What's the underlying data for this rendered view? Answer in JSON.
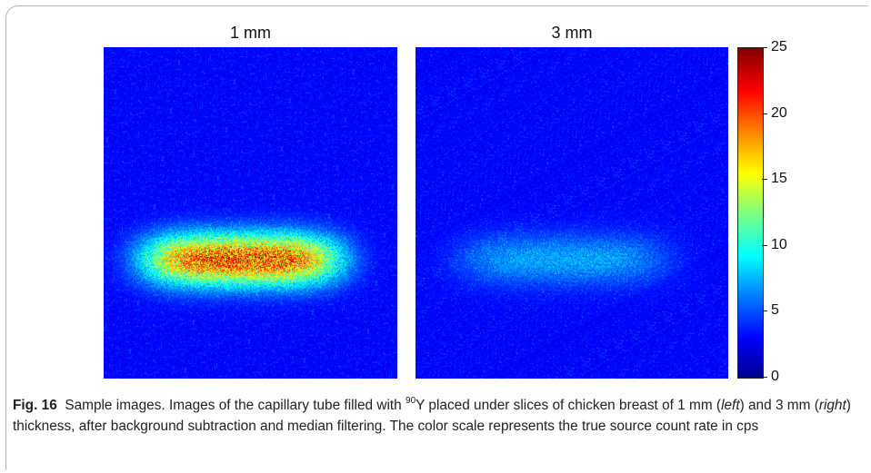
{
  "figure": {
    "panels": [
      {
        "title": "1 mm",
        "signal_peak": 0.9
      },
      {
        "title": "3 mm",
        "signal_peak": 0.22
      }
    ],
    "colorbar": {
      "min": 0,
      "max": 25,
      "ticks": [
        "0",
        "5",
        "10",
        "15",
        "20",
        "25"
      ],
      "colormap": "jet"
    }
  },
  "caption": {
    "label": "Fig. 16",
    "sentence1": "Sample images.",
    "part1": " Images of the capillary tube filled with ",
    "isotope_mass": "90",
    "isotope_symbol": "Y",
    "part2": " placed under slices of chicken breast of 1 mm (",
    "left_word": "left",
    "part3": ") and 3 mm (",
    "right_word": "right",
    "part4": ") thickness, after background subtraction and median filtering. The color scale represents the true source count rate in cps"
  }
}
